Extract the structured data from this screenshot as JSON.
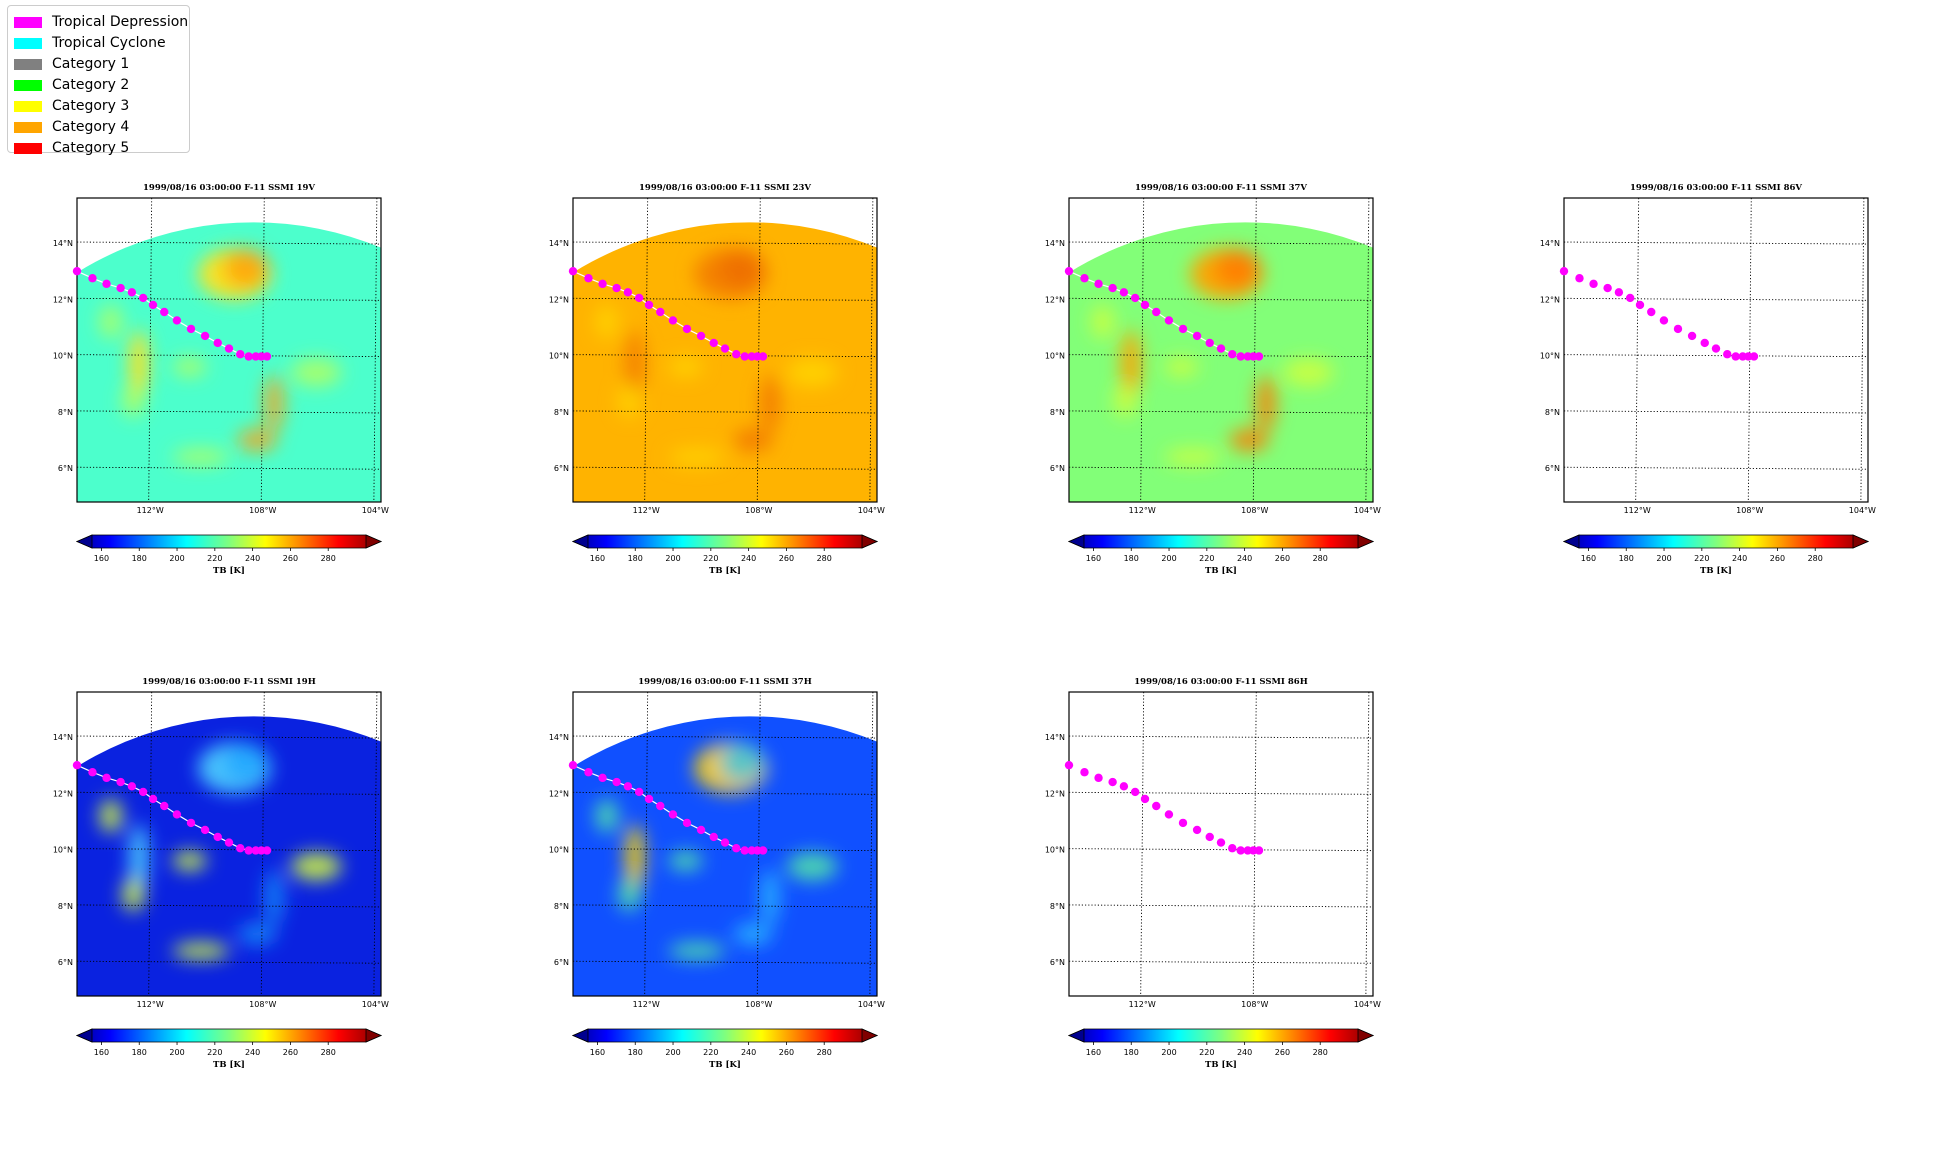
{
  "legend": {
    "items": [
      {
        "label": "Tropical Depression",
        "color": "#ff00ff"
      },
      {
        "label": "Tropical Cyclone",
        "color": "#00ffff"
      },
      {
        "label": "Category 1",
        "color": "#808080"
      },
      {
        "label": "Category 2",
        "color": "#00ff00"
      },
      {
        "label": "Category 3",
        "color": "#ffff00"
      },
      {
        "label": "Category 4",
        "color": "#ffa500"
      },
      {
        "label": "Category 5",
        "color": "#ff0000"
      }
    ]
  },
  "chart_data": [
    {
      "type": "heatmap",
      "title": "1999/08/16 03:00:00  F-11 SSMI 19V",
      "field": "19V",
      "has_data": true
    },
    {
      "type": "heatmap",
      "title": "1999/08/16 03:00:00  F-11 SSMI 23V",
      "field": "23V",
      "has_data": true
    },
    {
      "type": "heatmap",
      "title": "1999/08/16 03:00:00  F-11 SSMI 37V",
      "field": "37V",
      "has_data": true
    },
    {
      "type": "heatmap",
      "title": "1999/08/16 03:00:00  F-11 SSMI 86V",
      "field": "86V",
      "has_data": false
    },
    {
      "type": "heatmap",
      "title": "1999/08/16 03:00:00  F-11 SSMI 19H",
      "field": "19H",
      "has_data": true
    },
    {
      "type": "heatmap",
      "title": "1999/08/16 03:00:00  F-11 SSMI 37H",
      "field": "37H",
      "has_data": true
    },
    {
      "type": "heatmap",
      "title": "1999/08/16 03:00:00  F-11 SSMI 86H",
      "field": "86H",
      "has_data": false
    }
  ],
  "axes": {
    "x_ticks": [
      "112°W",
      "108°W",
      "104°W"
    ],
    "x_tick_lon": [
      -112,
      -108,
      -104
    ],
    "y_ticks": [
      "14°N",
      "12°N",
      "10°N",
      "8°N",
      "6°N"
    ],
    "y_tick_lat": [
      14,
      12,
      10,
      8,
      6
    ],
    "xlim": [
      -114.6,
      -103.8
    ],
    "ylim": [
      4.8,
      15.6
    ]
  },
  "colorbar": {
    "label": "TB [K]",
    "ticks": [
      "160",
      "180",
      "200",
      "220",
      "240",
      "260",
      "280"
    ],
    "range": [
      155,
      300
    ]
  },
  "track": {
    "category": "Tropical Depression",
    "color": "#ff00ff",
    "points": [
      [
        -114.6,
        13.0
      ],
      [
        -114.05,
        12.75
      ],
      [
        -113.55,
        12.55
      ],
      [
        -113.05,
        12.4
      ],
      [
        -112.65,
        12.25
      ],
      [
        -112.25,
        12.05
      ],
      [
        -111.9,
        11.8
      ],
      [
        -111.5,
        11.55
      ],
      [
        -111.05,
        11.25
      ],
      [
        -110.55,
        10.95
      ],
      [
        -110.05,
        10.7
      ],
      [
        -109.6,
        10.45
      ],
      [
        -109.2,
        10.25
      ],
      [
        -108.8,
        10.05
      ],
      [
        -108.5,
        9.97
      ],
      [
        -108.25,
        9.97
      ],
      [
        -108.05,
        9.97
      ],
      [
        -107.85,
        9.97
      ]
    ]
  }
}
